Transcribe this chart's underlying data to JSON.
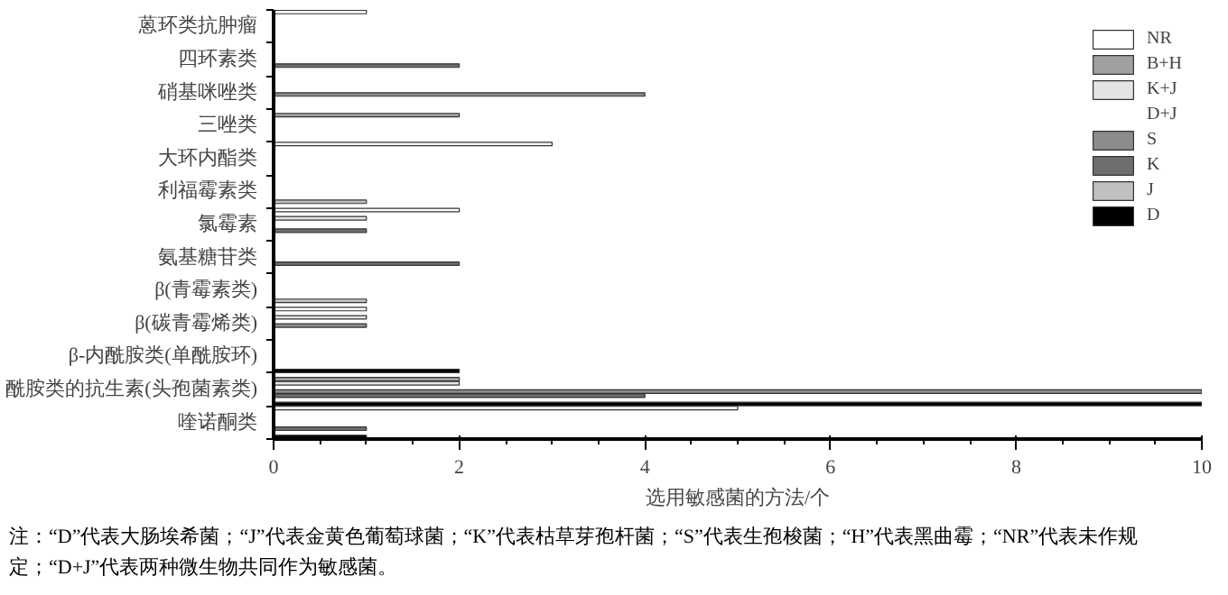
{
  "chart_data": {
    "type": "bar",
    "orientation": "horizontal",
    "xlabel": "选用敏感菌的方法/个",
    "categories": [
      "蒽环类抗肿瘤",
      "四环素类",
      "硝基咪唑类",
      "三唑类",
      "大环内酯类",
      "利福霉素类",
      "氯霉素",
      "氨基糖苷类",
      "β(青霉素类)",
      "β(碳青霉烯类)",
      "β-内酰胺类(单酰胺环)",
      "酰胺类的抗生素(头孢菌素类)",
      "喹诺酮类"
    ],
    "series": [
      {
        "name": "NR",
        "color": "#ffffff",
        "values": [
          1,
          null,
          null,
          null,
          3,
          null,
          2,
          null,
          null,
          1,
          null,
          null,
          5
        ]
      },
      {
        "name": "B+H",
        "color": "#a0a0a0",
        "values": [
          null,
          null,
          null,
          2,
          null,
          null,
          null,
          null,
          null,
          null,
          null,
          2,
          null
        ]
      },
      {
        "name": "K+J",
        "color": "#e4e4e4",
        "values": [
          null,
          null,
          null,
          null,
          null,
          null,
          1,
          null,
          null,
          1,
          null,
          2,
          null
        ]
      },
      {
        "name": "D+J",
        "color": "#505050",
        "values": [
          null,
          null,
          null,
          null,
          null,
          null,
          null,
          null,
          null,
          null,
          null,
          null,
          null
        ]
      },
      {
        "name": "S",
        "color": "#8c8c8c",
        "values": [
          null,
          null,
          4,
          null,
          null,
          null,
          null,
          null,
          null,
          1,
          null,
          10,
          null
        ]
      },
      {
        "name": "K",
        "color": "#6e6e6e",
        "values": [
          null,
          2,
          null,
          null,
          null,
          null,
          1,
          2,
          null,
          null,
          null,
          4,
          1
        ]
      },
      {
        "name": "J",
        "color": "#c0c0c0",
        "values": [
          null,
          null,
          null,
          null,
          null,
          1,
          null,
          null,
          1,
          null,
          null,
          null,
          null
        ]
      },
      {
        "name": "D",
        "color": "#000000",
        "values": [
          null,
          null,
          null,
          null,
          null,
          null,
          null,
          null,
          null,
          null,
          2,
          10,
          1
        ]
      }
    ],
    "xlim": [
      0,
      10
    ],
    "xticks": [
      0,
      2,
      4,
      6,
      8,
      10
    ],
    "grid": false,
    "legend": "top right",
    "annotations": [
      "注：“D”代表大肠埃希菌；“J”代表金黄色葡萄球菌；“K”代表枯草芽孢杆菌；“S”代表生孢梭菌；“H”代表黑曲霉；“NR”代表未作规定；“D+J”代表两种微生物共同作为敏感菌。"
    ]
  }
}
